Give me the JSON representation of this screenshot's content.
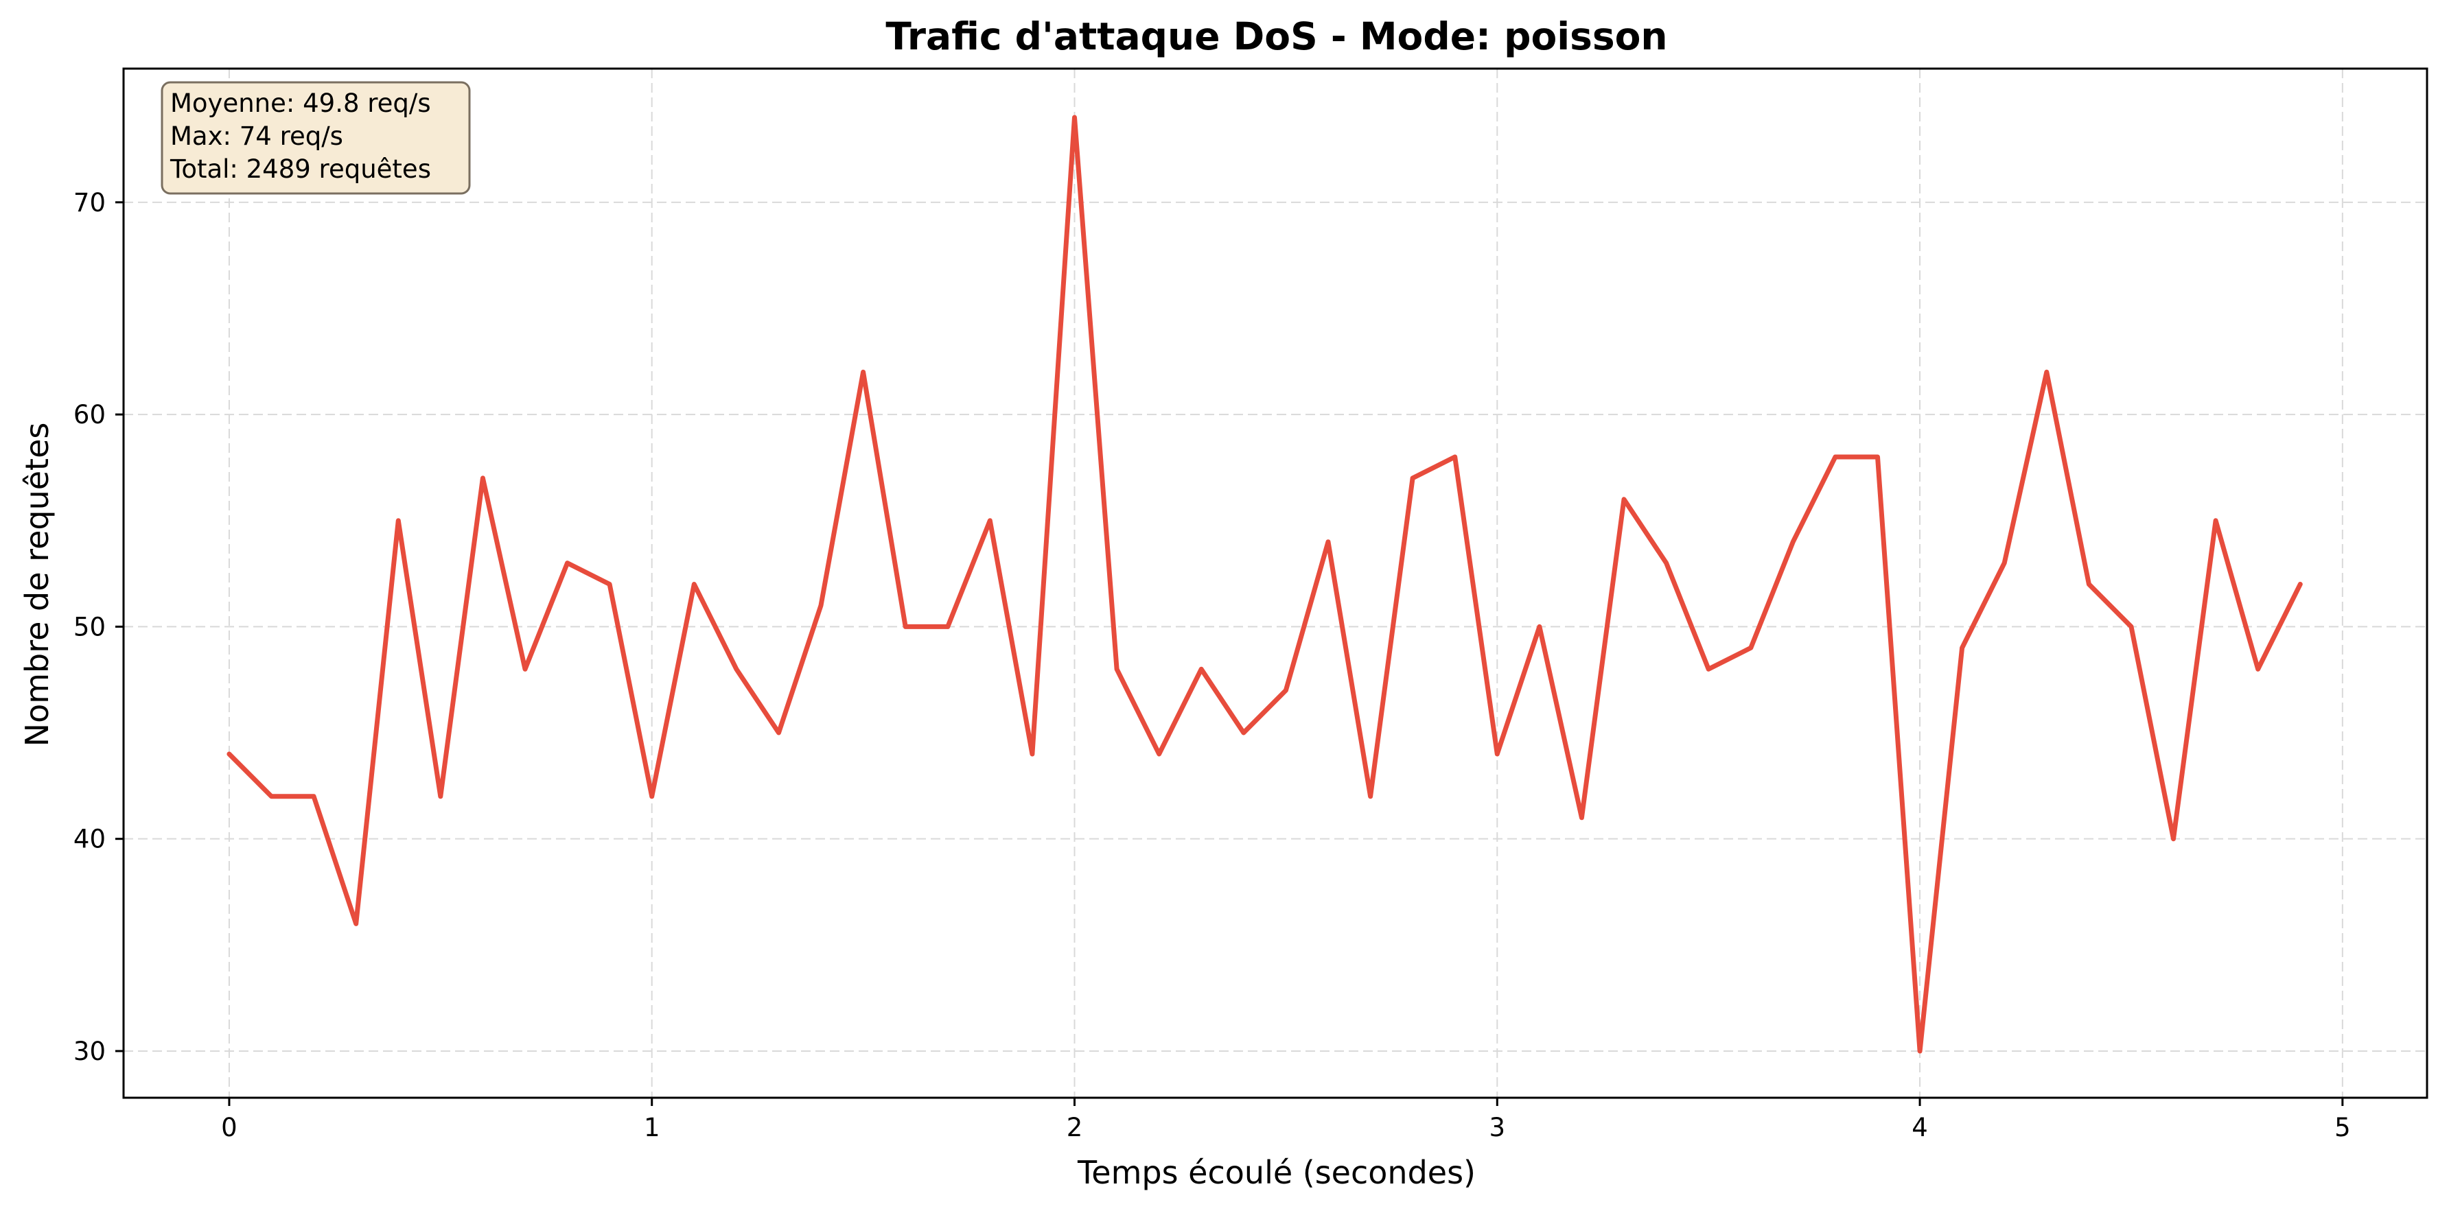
{
  "chart_data": {
    "type": "line",
    "title": "Trafic d'attaque DoS - Mode: poisson",
    "xlabel": "Temps écoulé (secondes)",
    "ylabel": "Nombre de requêtes",
    "xlim": [
      -0.25,
      5.2
    ],
    "ylim": [
      27.8,
      76.3
    ],
    "xticks": [
      0,
      1,
      2,
      3,
      4,
      5
    ],
    "yticks": [
      30,
      40,
      50,
      60,
      70
    ],
    "grid": true,
    "line_color": "#e74c3c",
    "series": [
      {
        "x": [
          0.0,
          0.1,
          0.2,
          0.3,
          0.4,
          0.5,
          0.6,
          0.7,
          0.8,
          0.9,
          1.0,
          1.1,
          1.2,
          1.3,
          1.4,
          1.5,
          1.6,
          1.7,
          1.8,
          1.9,
          2.0,
          2.1,
          2.2,
          2.3,
          2.4,
          2.5,
          2.6,
          2.7,
          2.8,
          2.9,
          3.0,
          3.1,
          3.2,
          3.3,
          3.4,
          3.5,
          3.6,
          3.7,
          3.8,
          3.9,
          4.0,
          4.1,
          4.2,
          4.3,
          4.4,
          4.5,
          4.6,
          4.7,
          4.8,
          4.9
        ],
        "values": [
          44,
          42,
          42,
          36,
          55,
          42,
          57,
          48,
          53,
          52,
          42,
          52,
          48,
          45,
          51,
          62,
          50,
          50,
          55,
          44,
          74,
          48,
          44,
          48,
          45,
          47,
          54,
          42,
          57,
          58,
          44,
          50,
          41,
          56,
          53,
          48,
          49,
          54,
          58,
          58,
          30,
          49,
          53,
          62,
          52,
          50,
          40,
          55,
          48,
          52
        ]
      }
    ],
    "stats_box": {
      "lines": [
        "Moyenne: 49.8 req/s",
        "Max: 74 req/s",
        "Total: 2489 requêtes"
      ],
      "background": "#f7ebd5",
      "position": "top-left"
    }
  }
}
